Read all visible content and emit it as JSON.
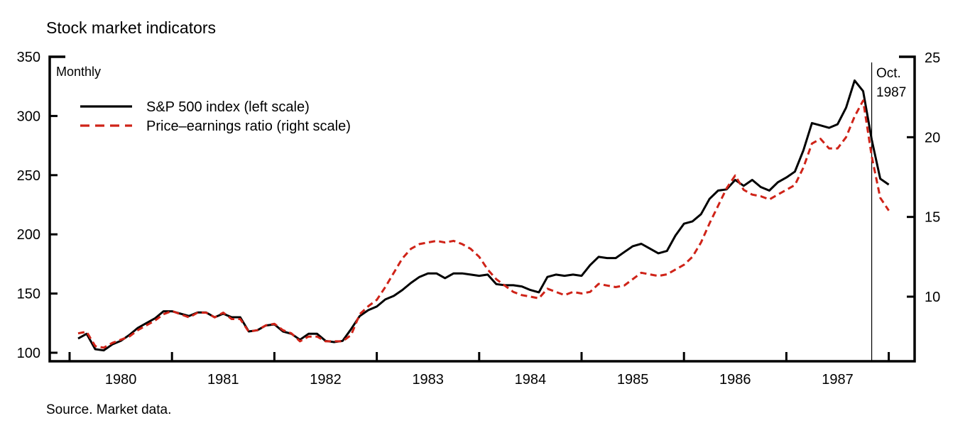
{
  "chart_data": {
    "type": "line",
    "title": "Stock market indicators",
    "frequency_note": "Monthly",
    "source_note": "Source. Market data.",
    "x_axis": {
      "tick_years": [
        1980,
        1981,
        1982,
        1983,
        1984,
        1985,
        1986,
        1987
      ],
      "start": "1980-01",
      "end": "1987-12",
      "frequency": "monthly"
    },
    "left_axis": {
      "tick_values": [
        350,
        300,
        250,
        200,
        150,
        100
      ],
      "range": [
        100,
        350
      ],
      "side": "left"
    },
    "right_axis": {
      "tick_values": [
        25,
        20,
        15,
        10
      ],
      "top_value": 25,
      "side": "right"
    },
    "annotation": {
      "line1": "Oct.",
      "line2": "1987",
      "year": 1987,
      "month": 10
    },
    "legend": [
      {
        "label": "S&P 500 index (left scale)",
        "style": "solid",
        "color": "#000000"
      },
      {
        "label": "Price–earnings ratio (right scale)",
        "style": "dashed",
        "color": "#cf2318"
      }
    ],
    "series": [
      {
        "name": "S&P 500 index",
        "axis": "left",
        "style": "solid",
        "color": "#000000",
        "values": [
          112,
          116,
          103,
          102,
          107,
          110,
          115,
          121,
          125,
          129,
          135,
          135,
          133,
          131,
          134,
          134,
          130,
          133,
          130,
          130,
          118,
          119,
          123,
          124,
          118,
          116,
          111,
          116,
          116,
          110,
          109,
          110,
          120,
          131,
          136,
          139,
          145,
          148,
          153,
          159,
          164,
          167,
          167,
          163,
          167,
          167,
          166,
          165,
          166,
          158,
          157,
          157,
          156,
          153,
          151,
          164,
          166,
          165,
          166,
          165,
          174,
          181,
          180,
          180,
          185,
          190,
          192,
          188,
          184,
          186,
          199,
          209,
          211,
          217,
          230,
          237,
          238,
          246,
          241,
          246,
          240,
          237,
          244,
          248,
          253,
          271,
          294,
          292,
          290,
          293,
          307,
          330,
          321,
          280,
          247,
          242
        ]
      },
      {
        "name": "Price-earnings ratio",
        "axis": "right",
        "style": "dashed",
        "color": "#cf2318",
        "values": [
          7.7,
          7.8,
          6.9,
          6.8,
          7.1,
          7.3,
          7.5,
          7.9,
          8.2,
          8.5,
          8.9,
          9.1,
          8.9,
          8.7,
          9.0,
          9.0,
          8.7,
          9.0,
          8.6,
          8.6,
          7.8,
          7.9,
          8.2,
          8.3,
          7.9,
          7.7,
          7.2,
          7.5,
          7.5,
          7.2,
          7.2,
          7.2,
          7.6,
          8.9,
          9.4,
          9.8,
          10.6,
          11.5,
          12.4,
          13.0,
          13.3,
          13.4,
          13.5,
          13.4,
          13.5,
          13.3,
          13.0,
          12.5,
          11.7,
          11.1,
          10.7,
          10.3,
          10.1,
          10.0,
          9.9,
          10.5,
          10.3,
          10.1,
          10.3,
          10.2,
          10.3,
          10.8,
          10.7,
          10.6,
          10.7,
          11.1,
          11.5,
          11.4,
          11.3,
          11.4,
          11.7,
          12.0,
          12.5,
          13.4,
          14.6,
          15.7,
          16.8,
          17.6,
          16.7,
          16.4,
          16.3,
          16.1,
          16.4,
          16.7,
          17.0,
          18.1,
          19.6,
          19.9,
          19.3,
          19.3,
          20.0,
          21.3,
          22.3,
          18.8,
          16.2,
          15.4
        ]
      }
    ]
  }
}
